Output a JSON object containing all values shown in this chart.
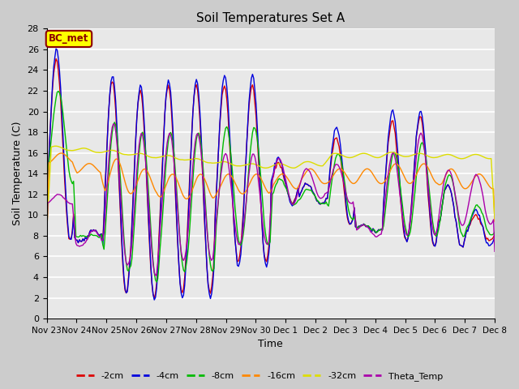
{
  "title": "Soil Temperatures Set A",
  "xlabel": "Time",
  "ylabel": "Soil Temperature (C)",
  "ylim": [
    0,
    28
  ],
  "yticks": [
    0,
    2,
    4,
    6,
    8,
    10,
    12,
    14,
    16,
    18,
    20,
    22,
    24,
    26,
    28
  ],
  "annotation_text": "BC_met",
  "annotation_bg": "#ffff00",
  "annotation_border": "#8B0000",
  "fig_bg": "#cccccc",
  "plot_bg": "#e8e8e8",
  "series_colors": {
    "-2cm": "#dd0000",
    "-4cm": "#0000dd",
    "-8cm": "#00bb00",
    "-16cm": "#ff8800",
    "-32cm": "#dddd00",
    "Theta_Temp": "#aa00aa"
  },
  "xtick_labels": [
    "Nov 23",
    "Nov 24",
    "Nov 25",
    "Nov 26",
    "Nov 27",
    "Nov 28",
    "Nov 29",
    "Nov 30",
    "Dec 1",
    "Dec 2",
    "Dec 3",
    "Dec 4",
    "Dec 5",
    "Dec 6",
    "Dec 7",
    "Dec 8"
  ],
  "n_points_per_day": 24,
  "n_days": 16
}
